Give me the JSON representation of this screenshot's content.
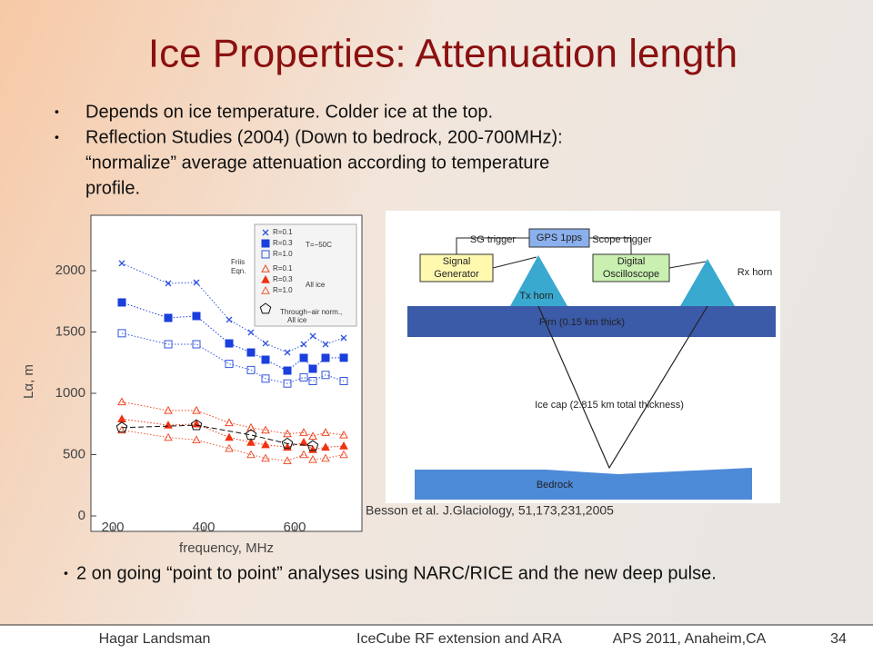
{
  "title": "Ice Properties: Attenuation length",
  "bullets": [
    {
      "lines": [
        "Depends on ice temperature. Colder ice at the top."
      ]
    },
    {
      "lines": [
        "Reflection Studies (2004) (Down to bedrock, 200-700MHz):",
        "“normalize” average attenuation according to temperature",
        "profile."
      ]
    }
  ],
  "bottom_bullet": "2 on going “point to point” analyses using NARC/RICE and the new deep pulse.",
  "diagram": {
    "sg_trigger": "SG trigger",
    "gps": "GPS 1pps",
    "scope_trigger": "Scope trigger",
    "signal_generator": [
      "Signal",
      "Generator"
    ],
    "oscilloscope": [
      "Digital",
      "Oscilloscope"
    ],
    "tx": "Tx horn",
    "rx": "Rx horn",
    "firn": "Firn (0.15 km thick)",
    "ice_cap": "Ice cap (2.815 km total thickness)",
    "bedrock": "Bedrock"
  },
  "caption": "Besson et al. J.Glaciology, 51,173,231,2005",
  "footer": {
    "author": "Hagar Landsman",
    "talk": "IceCube RF extension and ARA",
    "venue": "APS  2011, Anaheim,CA",
    "page": "34"
  },
  "chart_data": {
    "type": "scatter",
    "xlabel": "frequency, MHz",
    "ylabel": "Lα, m",
    "xlim": [
      152,
      748
    ],
    "ylim": [
      -126,
      2452
    ],
    "xticks": [
      200,
      400,
      600
    ],
    "yticks": [
      0,
      500,
      1000,
      1500,
      2000
    ],
    "legend_groups": {
      "t50": "T=−50C",
      "friis": [
        "Friis",
        "Eqn."
      ],
      "allice": "All ice",
      "air": [
        "Through−air norm.,",
        "All ice"
      ]
    },
    "series": [
      {
        "name": "R=0.1",
        "color": "#3355dd",
        "marker": "x",
        "x": [
          220,
          322,
          384,
          456,
          504,
          536,
          584,
          620,
          640,
          668,
          708
        ],
        "values": [
          2060,
          1896,
          1904,
          1600,
          1496,
          1407,
          1333,
          1400,
          1467,
          1400,
          1452
        ]
      },
      {
        "name": "R=0.3",
        "color": "#1a3fdd",
        "marker": "square",
        "x": [
          220,
          322,
          384,
          456,
          504,
          536,
          584,
          620,
          640,
          668,
          708
        ],
        "values": [
          1741,
          1615,
          1630,
          1407,
          1333,
          1274,
          1185,
          1289,
          1200,
          1289,
          1290
        ]
      },
      {
        "name": "R=1.0",
        "color": "#3355dd",
        "marker": "square-open",
        "x": [
          220,
          322,
          384,
          456,
          504,
          536,
          584,
          620,
          640,
          668,
          708
        ],
        "values": [
          1490,
          1400,
          1400,
          1240,
          1190,
          1120,
          1080,
          1130,
          1100,
          1150,
          1100
        ]
      },
      {
        "name": "R=0.1",
        "color": "#ee4422",
        "marker": "triangle-open",
        "x": [
          220,
          322,
          384,
          456,
          504,
          536,
          584,
          620,
          640,
          668,
          708
        ],
        "values": [
          930,
          860,
          860,
          760,
          720,
          700,
          670,
          680,
          650,
          680,
          660
        ]
      },
      {
        "name": "R=0.3",
        "color": "#ee3311",
        "marker": "triangle",
        "x": [
          220,
          322,
          384,
          456,
          504,
          536,
          584,
          620,
          640,
          668,
          708
        ],
        "values": [
          790,
          740,
          750,
          640,
          600,
          580,
          560,
          600,
          540,
          560,
          570
        ]
      },
      {
        "name": "R=1.0",
        "color": "#ee5533",
        "marker": "triangle-open",
        "x": [
          220,
          322,
          384,
          456,
          504,
          536,
          584,
          620,
          640,
          668,
          708
        ],
        "values": [
          700,
          640,
          620,
          550,
          500,
          470,
          450,
          500,
          460,
          470,
          500
        ]
      },
      {
        "name": "Through−air",
        "color": "#111111",
        "marker": "pentagon",
        "x": [
          220,
          384,
          504,
          584,
          640
        ],
        "values": [
          720,
          740,
          660,
          590,
          570
        ]
      }
    ]
  }
}
